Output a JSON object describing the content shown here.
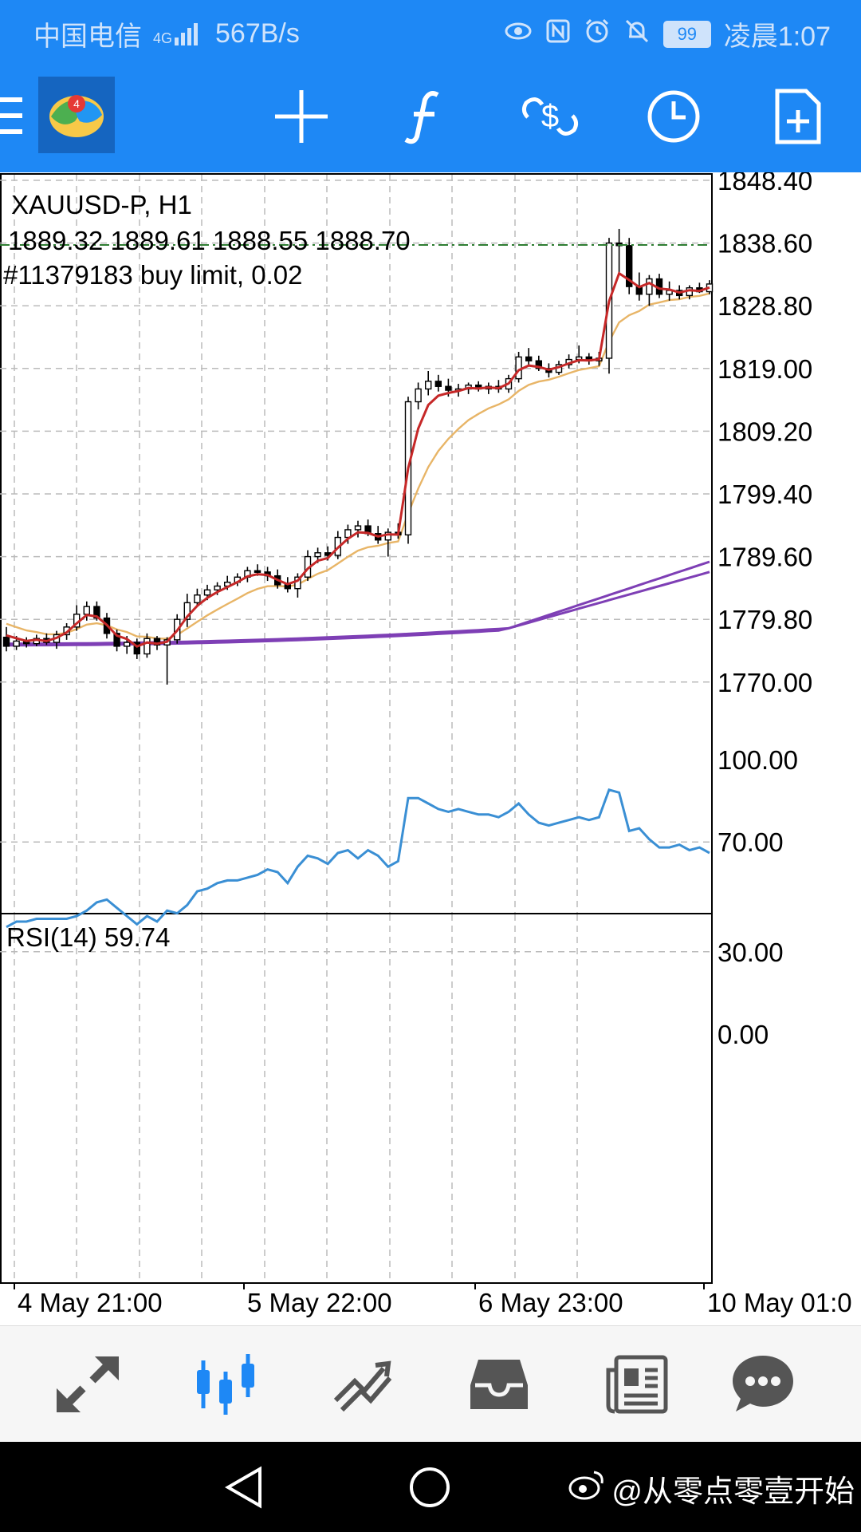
{
  "status_bar": {
    "carrier": "中国电信",
    "signal": "4G",
    "speed": "567B/s",
    "battery": "99",
    "time": "凌晨1:07",
    "icons": [
      "eye-icon",
      "nfc-icon",
      "alarm-icon",
      "mute-icon"
    ]
  },
  "toolbar": {
    "icons": [
      "menu-icon",
      "metatrader-logo",
      "crosshair-icon",
      "indicators-icon",
      "trade-icon",
      "timeframe-icon",
      "new-order-icon"
    ]
  },
  "chart": {
    "symbol_line": "XAUUSD-P, H1",
    "ohlc_line": "1889.32 1889.61 1888.55 1888.70",
    "order_line": "#11379183 buy limit, 0.02",
    "order_price": 1838.3,
    "price_labels": [
      "1848.40",
      "1838.60",
      "1828.80",
      "1819.00",
      "1809.20",
      "1799.40",
      "1789.60",
      "1779.80",
      "1770.00"
    ],
    "time_labels": [
      "4 May 21:00",
      "5 May 22:00",
      "6 May 23:00",
      "10 May 01:0"
    ],
    "ma_fast_color": "#c62828",
    "ma_slow_color": "#e8b567",
    "ma_long_color": "#7e3fb5",
    "bull_fill": "#ffffff",
    "bear_fill": "#000000"
  },
  "rsi": {
    "label": "RSI(14) 59.74",
    "levels": [
      "100.00",
      "70.00",
      "30.00",
      "0.00"
    ],
    "line_color": "#3a8fd4"
  },
  "bottom_nav": {
    "icons": [
      "quotes-icon",
      "chart-icon",
      "trade-icon",
      "history-icon",
      "news-icon",
      "messages-icon"
    ],
    "active": 1
  },
  "watermark": "@从零点零壹开始"
}
